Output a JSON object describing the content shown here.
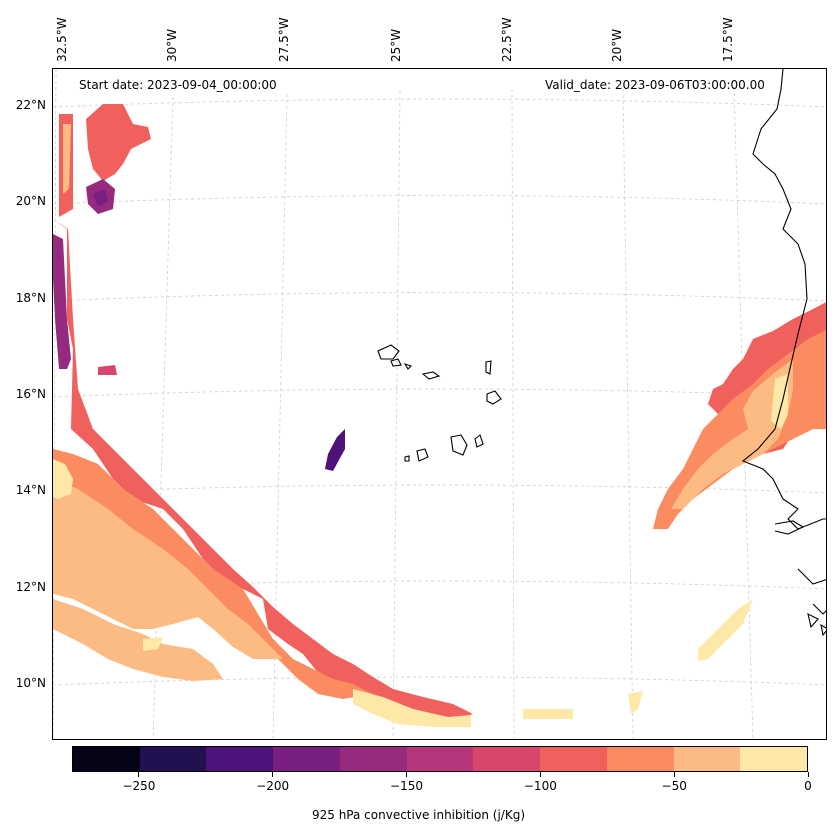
{
  "start_date_text": "Start date: 2023-09-04_00:00:00",
  "valid_date_text": "Valid_date: 2023-09-06T03:00:00.00",
  "lon_labels": [
    "32.5°W",
    "30°W",
    "27.5°W",
    "25°W",
    "22.5°W",
    "20°W",
    "17.5°W"
  ],
  "lat_labels": [
    "22°N",
    "20°N",
    "18°N",
    "16°N",
    "14°N",
    "12°N",
    "10°N"
  ],
  "colorbar": {
    "label": "925 hPa convective inhibition (j/Kg)",
    "tick_labels": [
      "−250",
      "−200",
      "−150",
      "−100",
      "−50",
      "0"
    ],
    "levels": [
      -275,
      -250,
      -225,
      -200,
      -175,
      -150,
      -125,
      -100,
      -75,
      -50,
      -25,
      0
    ],
    "colors": [
      "#050417",
      "#221150",
      "#4f127b",
      "#7a1f82",
      "#942b7f",
      "#b5367a",
      "#d9466b",
      "#f0605d",
      "#fa8c60",
      "#fdbb84",
      "#fde8a7"
    ]
  },
  "map": {
    "projection": "lambert conformal",
    "lon_range": [
      -33,
      -15.5
    ],
    "lat_range": [
      8.7,
      22.7
    ],
    "field": "925 hPa convective inhibition",
    "units": "j/Kg",
    "features": [
      "Cape Verde islands",
      "West African coastline (Senegal, Gambia, Guinea-Bissau)"
    ]
  }
}
